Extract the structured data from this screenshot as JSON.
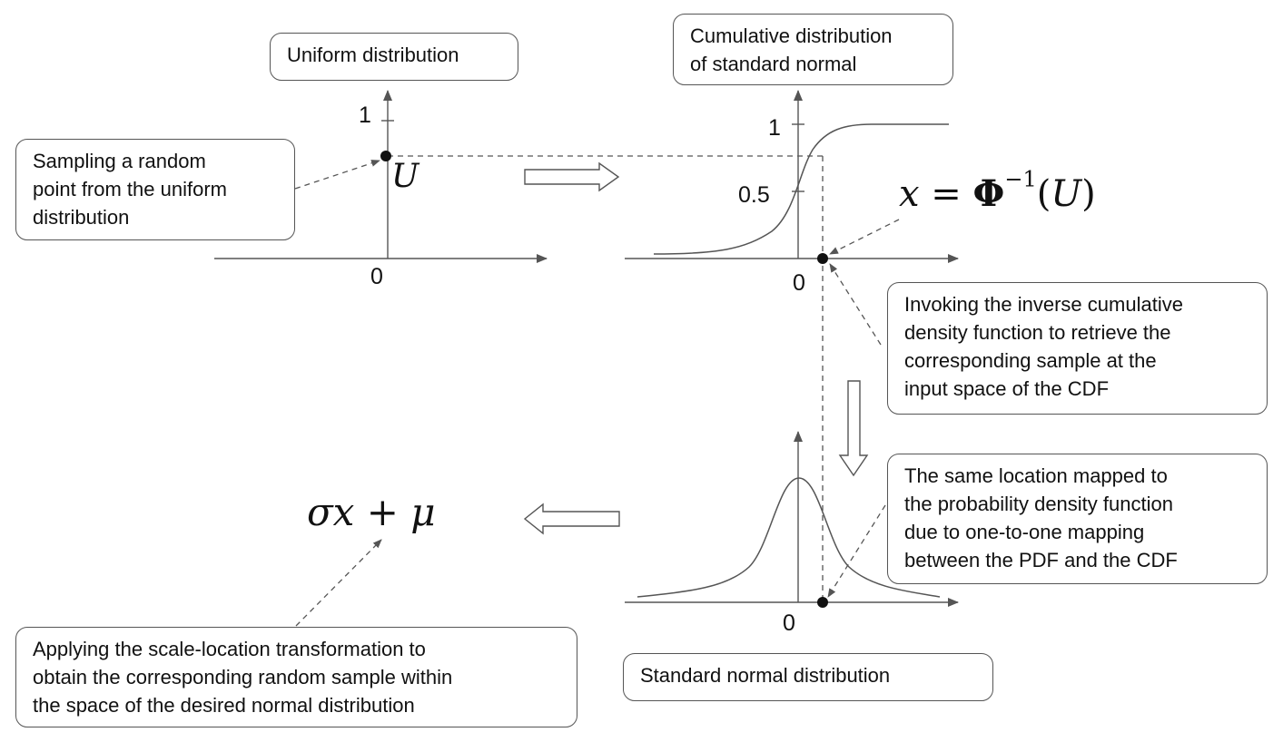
{
  "boxes": {
    "uniform_title": "Uniform distribution",
    "cdf_title": "Cumulative distribution\nof standard normal",
    "sampling_note": "Sampling a random\npoint from the uniform\ndistribution",
    "inverse_note": "Invoking the inverse cumulative\ndensity function to retrieve the\ncorresponding sample at the\ninput space of the CDF",
    "pdf_note": "The same location mapped to\nthe probability density function\ndue to one-to-one mapping\nbetween the PDF and the CDF",
    "scale_note": "Applying the scale-location transformation to\nobtain the corresponding random sample within\nthe space of the desired normal distribution",
    "normal_title": "Standard normal distribution"
  },
  "ticks": {
    "uniform_one": "1",
    "uniform_zero": "0",
    "cdf_one": "1",
    "cdf_half": "0.5",
    "cdf_zero": "0",
    "pdf_zero": "0"
  },
  "math": {
    "u_label": "U",
    "inverse_x": "x",
    "inverse_eq": "=",
    "inverse_phi": "Φ",
    "inverse_exp": "−1",
    "inverse_arg_open": "(",
    "inverse_arg": "U",
    "inverse_arg_close": ")",
    "scale_sigma": "σ",
    "scale_x": "x",
    "scale_plus": "+",
    "scale_mu": "μ"
  },
  "colors": {
    "line": "#555555",
    "text": "#111111",
    "point": "#111111"
  }
}
